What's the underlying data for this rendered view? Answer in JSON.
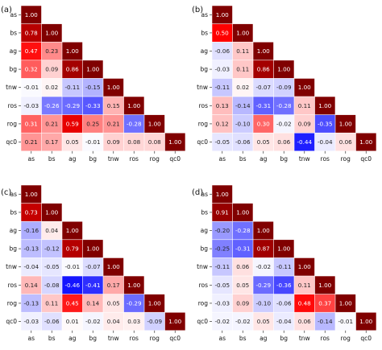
{
  "chart_data": [
    {
      "panel_label": "(a)",
      "type": "heatmap",
      "variables": [
        "as",
        "bs",
        "ag",
        "bg",
        "tnw",
        "ros",
        "rog",
        "qc0"
      ],
      "matrix_lower": [
        [
          1.0
        ],
        [
          0.78,
          1.0
        ],
        [
          0.47,
          0.23,
          1.0
        ],
        [
          0.32,
          0.09,
          0.86,
          1.0
        ],
        [
          -0.01,
          0.02,
          -0.11,
          -0.15,
          1.0
        ],
        [
          -0.03,
          -0.26,
          -0.29,
          -0.33,
          0.15,
          1.0
        ],
        [
          0.31,
          0.21,
          0.59,
          0.25,
          0.21,
          -0.28,
          1.0
        ],
        [
          0.21,
          0.17,
          0.05,
          -0.01,
          0.09,
          0.08,
          0.08,
          1.0
        ]
      ],
      "labels_lower": [
        [
          "1.00"
        ],
        [
          "0.78",
          "1.00"
        ],
        [
          "0.47",
          "0.23",
          "1.00"
        ],
        [
          "0.32",
          "0.09",
          "0.86",
          "1.00"
        ],
        [
          "-0.01",
          "0.02",
          "-0.11",
          "-0.15",
          "1.00"
        ],
        [
          "-0.03",
          "-0.26",
          "-0.29",
          "-0.33",
          "0.15",
          "1.00"
        ],
        [
          "0.31",
          "0.21",
          "0.59",
          "0.25",
          "0.21",
          "-0.28",
          "1.00"
        ],
        [
          "0.21",
          "0.17",
          "0.05",
          "-0.01",
          "0.09",
          "0.08",
          "0.08",
          "1.00"
        ]
      ]
    },
    {
      "panel_label": "(b)",
      "type": "heatmap",
      "variables": [
        "as",
        "bs",
        "ag",
        "bg",
        "tnw",
        "ros",
        "rog",
        "qc0"
      ],
      "matrix_lower": [
        [
          1.0
        ],
        [
          0.5,
          1.0
        ],
        [
          -0.06,
          0.11,
          1.0
        ],
        [
          -0.03,
          0.11,
          0.86,
          1.0
        ],
        [
          -0.11,
          0.02,
          -0.07,
          -0.09,
          1.0
        ],
        [
          0.13,
          -0.14,
          -0.31,
          -0.28,
          0.11,
          1.0
        ],
        [
          0.12,
          -0.1,
          0.3,
          -0.02,
          0.09,
          -0.35,
          1.0
        ],
        [
          -0.05,
          -0.06,
          0.05,
          0.06,
          -0.44,
          -0.04,
          0.06,
          1.0
        ]
      ],
      "labels_lower": [
        [
          "1.00"
        ],
        [
          "0.50",
          "1.00"
        ],
        [
          "-0.06",
          "0.11",
          "1.00"
        ],
        [
          "-0.03",
          "0.11",
          "0.86",
          "1.00"
        ],
        [
          "-0.11",
          "0.02",
          "-0.07",
          "-0.09",
          "1.00"
        ],
        [
          "0.13",
          "-0.14",
          "-0.31",
          "-0.28",
          "0.11",
          "1.00"
        ],
        [
          "0.12",
          "-0.10",
          "0.30",
          "-0.02",
          "0.09",
          "-0.35",
          "1.00"
        ],
        [
          "-0.05",
          "-0.06",
          "0.05",
          "0.06",
          "-0.44",
          "-0.04",
          "0.06",
          "1.00"
        ]
      ]
    },
    {
      "panel_label": "(c)",
      "type": "heatmap",
      "variables": [
        "as",
        "bs",
        "ag",
        "bg",
        "tnw",
        "ros",
        "rog",
        "qc0"
      ],
      "matrix_lower": [
        [
          1.0
        ],
        [
          0.73,
          1.0
        ],
        [
          -0.16,
          0.04,
          1.0
        ],
        [
          -0.13,
          -0.12,
          0.79,
          1.0
        ],
        [
          -0.04,
          -0.05,
          -0.01,
          -0.07,
          1.0
        ],
        [
          0.14,
          -0.08,
          -0.46,
          -0.41,
          0.17,
          1.0
        ],
        [
          -0.13,
          0.11,
          0.45,
          0.14,
          0.05,
          -0.29,
          1.0
        ],
        [
          -0.03,
          -0.06,
          0.01,
          -0.02,
          0.04,
          0.03,
          -0.09,
          1.0
        ]
      ],
      "labels_lower": [
        [
          "1.00"
        ],
        [
          "0.73",
          "1.00"
        ],
        [
          "-0.16",
          "0.04",
          "1.00"
        ],
        [
          "-0.13",
          "-0.12",
          "0.79",
          "1.00"
        ],
        [
          "-0.04",
          "-0.05",
          "-0.01",
          "-0.07",
          "1.00"
        ],
        [
          "0.14",
          "-0.08",
          "-0.46",
          "-0.41",
          "0.17",
          "1.00"
        ],
        [
          "-0.13",
          "0.11",
          "0.45",
          "0.14",
          "0.05",
          "-0.29",
          "1.00"
        ],
        [
          "-0.03",
          "-0.06",
          "0.01",
          "-0.02",
          "0.04",
          "0.03",
          "-0.09",
          "1.00"
        ]
      ]
    },
    {
      "panel_label": "(d)",
      "type": "heatmap",
      "variables": [
        "as",
        "bs",
        "ag",
        "bg",
        "tnw",
        "ros",
        "rog",
        "qc0"
      ],
      "matrix_lower": [
        [
          1.0
        ],
        [
          0.91,
          1.0
        ],
        [
          -0.2,
          -0.28,
          1.0
        ],
        [
          -0.25,
          -0.31,
          0.87,
          1.0
        ],
        [
          -0.11,
          0.06,
          -0.02,
          -0.11,
          1.0
        ],
        [
          -0.05,
          0.05,
          -0.29,
          -0.36,
          0.11,
          1.0
        ],
        [
          -0.03,
          0.09,
          -0.1,
          -0.06,
          0.48,
          0.37,
          1.0
        ],
        [
          -0.02,
          -0.02,
          0.05,
          -0.04,
          0.06,
          -0.14,
          -0.01,
          1.0
        ]
      ],
      "labels_lower": [
        [
          "1.00"
        ],
        [
          "0.91",
          "1.00"
        ],
        [
          "-0.20",
          "-0.28",
          "1.00"
        ],
        [
          "-0.25",
          "-0.31",
          "0.87",
          "1.00"
        ],
        [
          "-0.11",
          "0.06",
          "-0.02",
          "-0.11",
          "1.00"
        ],
        [
          "-0.05",
          "0.05",
          "-0.29",
          "-0.36",
          "0.11",
          "1.00"
        ],
        [
          "-0.03",
          "0.09",
          "-0.10",
          "-0.06",
          "0.48",
          "0.37",
          "1.00"
        ],
        [
          "-0.02",
          "-0.02",
          "0.05",
          "-0.04",
          "0.06",
          "-0.14",
          "-0.01",
          "1.00"
        ]
      ]
    }
  ],
  "colors": {
    "colormap": "seismic",
    "negative_end": "#0000ff",
    "midpoint": "#ffffff",
    "positive_end": "#800000",
    "value_range": [
      -1,
      1
    ]
  }
}
